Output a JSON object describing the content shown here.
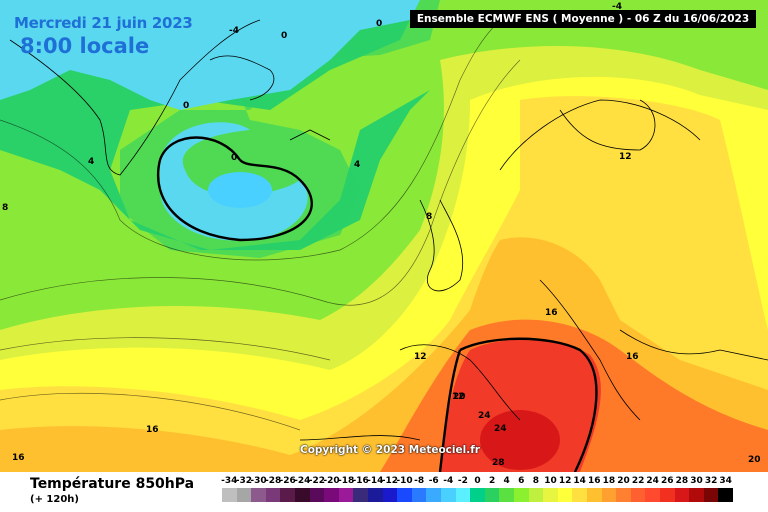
{
  "header": {
    "date_label": "Mercredi 21 juin 2023",
    "time_label": "8:00 locale",
    "run_info": "Ensemble ECMWF ENS  ( Moyenne )  -  06 Z du 16/06/2023"
  },
  "copyright": "Copyright © 2023 Meteociel.fr",
  "footer": {
    "parameter": "Température 850hPa",
    "lead_time": "(+ 120h)"
  },
  "legend": {
    "values": [
      "-34",
      "-32",
      "-30",
      "-28",
      "-26",
      "-24",
      "-22",
      "-20",
      "-18",
      "-16",
      "-14",
      "-12",
      "-10",
      "-8",
      "-6",
      "-4",
      "-2",
      "0",
      "2",
      "4",
      "6",
      "8",
      "10",
      "12",
      "14",
      "16",
      "18",
      "20",
      "22",
      "24",
      "26",
      "28",
      "30",
      "32",
      "34"
    ],
    "colors": [
      "#bfbfbf",
      "#a6a6a6",
      "#8c5a8c",
      "#7a3a7a",
      "#5a1a4a",
      "#3a0a2a",
      "#5a0a5a",
      "#7a0a7a",
      "#9a1a9a",
      "#3a2a7a",
      "#1a1a9a",
      "#1a1acc",
      "#1a4aff",
      "#2a7aff",
      "#3aaaff",
      "#4ad0ff",
      "#5af0ff",
      "#00d08a",
      "#2ad060",
      "#5ae040",
      "#8af030",
      "#bff040",
      "#e8f540",
      "#ffff3a",
      "#ffe040",
      "#ffc030",
      "#ffa030",
      "#ff8030",
      "#ff6030",
      "#ff4a30",
      "#f23020",
      "#d81818",
      "#b00a0a",
      "#7a0505",
      "#000000"
    ]
  },
  "contour_labels": [
    "-4",
    "0",
    "-4",
    "0",
    "0",
    "0",
    "4",
    "4",
    "8",
    "8",
    "12",
    "12",
    "16",
    "16",
    "12",
    "20",
    "24",
    "24",
    "28",
    "16",
    "16",
    "20"
  ],
  "colors": {
    "temp_cold_0": "#5ad8f0",
    "temp_2": "#2ad068",
    "temp_6": "#8ae838",
    "temp_10": "#dcf040",
    "temp_12": "#ffff3a",
    "temp_16": "#ffc030",
    "temp_20": "#ff7a28",
    "temp_24": "#f23a28"
  }
}
